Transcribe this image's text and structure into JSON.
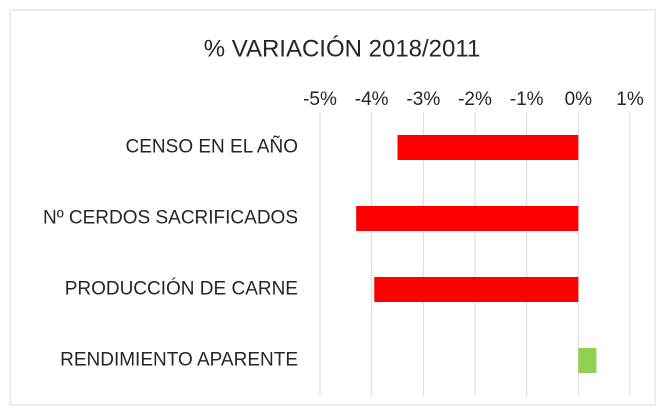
{
  "chart_data": {
    "type": "bar",
    "orientation": "horizontal",
    "title": "% VARIACIÓN 2018/2011",
    "categories": [
      "CENSO EN EL AÑO",
      "Nº CERDOS SACRIFICADOS",
      "PRODUCCIÓN DE CARNE",
      "RENDIMIENTO APARENTE"
    ],
    "values": [
      -3.5,
      -4.3,
      -3.95,
      0.35
    ],
    "colors": [
      "#ff0000",
      "#ff0000",
      "#ff0000",
      "#92d050"
    ],
    "xlim": [
      -5,
      1
    ],
    "xticks": [
      {
        "value": -5,
        "label": "-5%"
      },
      {
        "value": -4,
        "label": "-4%"
      },
      {
        "value": -3,
        "label": "-3%"
      },
      {
        "value": -2,
        "label": "-2%"
      },
      {
        "value": -1,
        "label": "-1%"
      },
      {
        "value": 0,
        "label": "0%"
      },
      {
        "value": 1,
        "label": "1%"
      }
    ],
    "grid": true
  }
}
